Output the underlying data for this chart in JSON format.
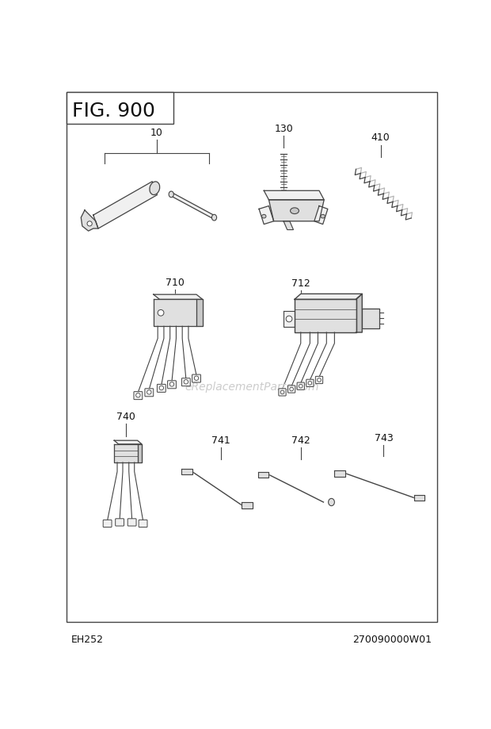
{
  "title": "FIG. 900",
  "bottom_left": "EH252",
  "bottom_right": "270090000W01",
  "watermark": "eReplacementParts.com",
  "bg_color": "#ffffff",
  "line_color": "#444444",
  "fill_light": "#f0f0f0",
  "fill_mid": "#e0e0e0",
  "fill_dark": "#c8c8c8"
}
